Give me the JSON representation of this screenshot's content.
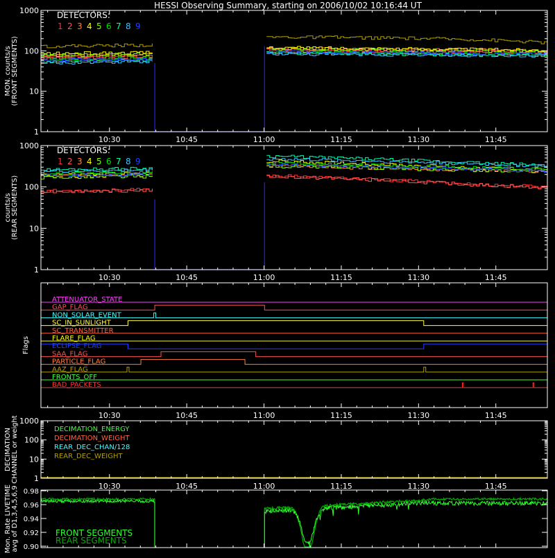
{
  "title": "HESSI Observing Summary, starting on 2006/10/02 10:16:44 UT",
  "time_axis": {
    "start_minute": 16.7,
    "end_minute": 115,
    "tick_minutes": [
      30,
      45,
      60,
      75,
      90,
      105
    ],
    "tick_labels": [
      "10:30",
      "10:45",
      "11:00",
      "11:15",
      "11:30",
      "11:45"
    ]
  },
  "colors": {
    "detector": [
      "#ff3030",
      "#ff5555",
      "#ff8040",
      "#ffff00",
      "#80ff00",
      "#00e000",
      "#00ffb0",
      "#40c0ff",
      "#2040ff"
    ],
    "dark_yellow": "#b0a000",
    "frame": "#ffffff",
    "gap": "#2020ff",
    "livetime_front": "#30ff30",
    "livetime_rear": "#00b000"
  },
  "chart_data": [
    {
      "type": "line",
      "id": "front",
      "ylabel_lines": [
        "MON. counts/s",
        "(FRONT SEGMENTS)"
      ],
      "yscale": "log",
      "ylim": [
        1,
        1000
      ],
      "ytick_values": [
        1,
        10,
        100,
        1000
      ],
      "ytick_labels": [
        "1",
        "10",
        "100",
        "1000"
      ],
      "legend_title": "DETECTORS:",
      "legend_digits": [
        "1",
        "2",
        "3",
        "4",
        "5",
        "6",
        "7",
        "8",
        "9"
      ],
      "gap": {
        "start": 38.8,
        "end": 60.1
      },
      "series": [
        {
          "name": "1",
          "before": [
            70,
            72,
            75
          ],
          "after": [
            108,
            105,
            100,
            97,
            95
          ]
        },
        {
          "name": "2",
          "before": [
            65,
            68,
            70
          ],
          "after": [
            100,
            98,
            95,
            92,
            90
          ]
        },
        {
          "name": "3",
          "before": [
            75,
            78,
            80
          ],
          "after": [
            115,
            112,
            108,
            104,
            100
          ]
        },
        {
          "name": "4",
          "before": [
            85,
            88,
            90
          ],
          "after": [
            120,
            118,
            112,
            108,
            104
          ]
        },
        {
          "name": "5",
          "before": [
            78,
            80,
            84
          ],
          "after": [
            110,
            107,
            104,
            100,
            96
          ]
        },
        {
          "name": "6",
          "before": [
            62,
            64,
            66
          ],
          "after": [
            92,
            90,
            88,
            85,
            82
          ]
        },
        {
          "name": "7",
          "before": [
            55,
            57,
            60
          ],
          "after": [
            88,
            86,
            83,
            80,
            78
          ]
        },
        {
          "name": "8",
          "before": [
            50,
            52,
            55
          ],
          "after": [
            85,
            82,
            80,
            77,
            75
          ]
        },
        {
          "name": "9",
          "before": [
            58,
            60,
            62
          ],
          "after": [
            95,
            92,
            90,
            86,
            84
          ]
        },
        {
          "name": "",
          "before": [
            130,
            135,
            140
          ],
          "after": [
            220,
            215,
            205,
            190,
            160
          ]
        }
      ]
    },
    {
      "type": "line",
      "id": "rear",
      "ylabel_lines": [
        "counts/s",
        "(REAR SEGMENTS)"
      ],
      "yscale": "log",
      "ylim": [
        1,
        1000
      ],
      "ytick_values": [
        1,
        10,
        100,
        1000
      ],
      "ytick_labels": [
        "1",
        "10",
        "100",
        "1000"
      ],
      "legend_title": "DETECTORS:",
      "legend_digits": [
        "1",
        "2",
        "3",
        "4",
        "5",
        "6",
        "7",
        "8",
        "9"
      ],
      "gap": {
        "start": 38.8,
        "end": 60.1
      },
      "series": [
        {
          "name": "1",
          "before": [
            80,
            83,
            86
          ],
          "after": [
            190,
            165,
            140,
            115,
            100
          ]
        },
        {
          "name": "2",
          "before": [
            78,
            80,
            84
          ],
          "after": [
            180,
            160,
            135,
            112,
            95
          ]
        },
        {
          "name": "3",
          "before": [
            180,
            185,
            190
          ],
          "after": [
            330,
            300,
            270,
            250,
            230
          ]
        },
        {
          "name": "4",
          "before": [
            200,
            205,
            210
          ],
          "after": [
            420,
            380,
            330,
            290,
            260
          ]
        },
        {
          "name": "5",
          "before": [
            170,
            175,
            180
          ],
          "after": [
            320,
            300,
            275,
            255,
            235
          ]
        },
        {
          "name": "6",
          "before": [
            210,
            215,
            220
          ],
          "after": [
            380,
            350,
            320,
            290,
            265
          ]
        },
        {
          "name": "7",
          "before": [
            260,
            270,
            280
          ],
          "after": [
            560,
            500,
            440,
            380,
            330
          ]
        },
        {
          "name": "8",
          "before": [
            240,
            245,
            255
          ],
          "after": [
            480,
            440,
            400,
            360,
            320
          ]
        },
        {
          "name": "9",
          "before": [
            190,
            195,
            200
          ],
          "after": [
            350,
            320,
            300,
            270,
            245
          ]
        }
      ]
    },
    {
      "type": "step",
      "id": "flags",
      "ylabel": "Flags",
      "flags": [
        {
          "label": "ATTENUATOR_STATE",
          "color": "#ff40ff",
          "high": []
        },
        {
          "label": "GAP_FLAG",
          "color": "#ff5050",
          "high": [
            [
              38.8,
              60.1
            ]
          ]
        },
        {
          "label": "NON_SOLAR_EVENT",
          "color": "#40ffff",
          "high": [
            [
              38.6,
              39.0
            ]
          ]
        },
        {
          "label": "SC_IN_SUNLIGHT",
          "color": "#ffff40",
          "high": [
            [
              33.6,
              91.0
            ]
          ],
          "invert": true
        },
        {
          "label": "SC_TRANSMITTER",
          "color": "#ff6040",
          "high": []
        },
        {
          "label": "FLARE_FLAG",
          "color": "#ffff00",
          "high": []
        },
        {
          "label": "ECLIPSE_FLAG",
          "color": "#2040ff",
          "high": [
            [
              16.7,
              33.6
            ],
            [
              91.0,
              115
            ]
          ]
        },
        {
          "label": "SAA_FLAG",
          "color": "#ff5050",
          "high": [
            [
              40.0,
              58.4
            ]
          ]
        },
        {
          "label": "PARTICLE_FLAG",
          "color": "#ff8040",
          "high": [
            [
              36.1,
              56.3
            ]
          ]
        },
        {
          "label": "AAZ_FLAG",
          "color": "#b0a000",
          "high": [
            [
              33.4,
              33.8
            ],
            [
              91.0,
              91.4
            ]
          ]
        },
        {
          "label": "FRONTS_OFF",
          "color": "#40ff40",
          "high": []
        },
        {
          "label": "BAD_PACKETS",
          "color": "#ff3030",
          "high": [
            [
              98.5,
              98.7
            ],
            [
              112.2,
              112.4
            ]
          ]
        }
      ]
    },
    {
      "type": "line",
      "id": "decimation",
      "ylabel_lines": [
        "DECIMATION",
        "CHANNEL or weight"
      ],
      "yscale": "log",
      "ylim": [
        1,
        1000
      ],
      "ytick_values": [
        1,
        10,
        100,
        1000
      ],
      "ytick_labels": [
        "1",
        "10",
        "100",
        "1000"
      ],
      "legend": [
        {
          "label": "DECIMATION_ENERGY",
          "color": "#40ff40"
        },
        {
          "label": "DECIMATION_WEIGHT",
          "color": "#ff6040"
        },
        {
          "label": "REAR_DEC_CHAN/128",
          "color": "#40ffff"
        },
        {
          "label": "REAR_DEC_WEIGHT",
          "color": "#b0a000"
        }
      ],
      "series": [
        {
          "name": "REAR_DEC_WEIGHT",
          "value": 1
        }
      ]
    },
    {
      "type": "line",
      "id": "livetime",
      "ylabel_lines": [
        "Mon. Rate LIVETIME",
        "avg of D1,3,4,5,6,9"
      ],
      "ylim": [
        0.898,
        0.981
      ],
      "ytick_values": [
        0.9,
        0.92,
        0.94,
        0.96,
        0.98
      ],
      "ytick_labels": [
        "0.90",
        "0.92",
        "0.94",
        "0.96",
        "0.98"
      ],
      "gap": {
        "start": 38.8,
        "end": 60.1
      },
      "legend": [
        {
          "label": "FRONT SEGMENTS",
          "color": "#30ff30"
        },
        {
          "label": "REAR SEGMENTS",
          "color": "#00b000"
        }
      ],
      "dip": {
        "center_minute": 68.5,
        "min_value": 0.899
      }
    }
  ]
}
